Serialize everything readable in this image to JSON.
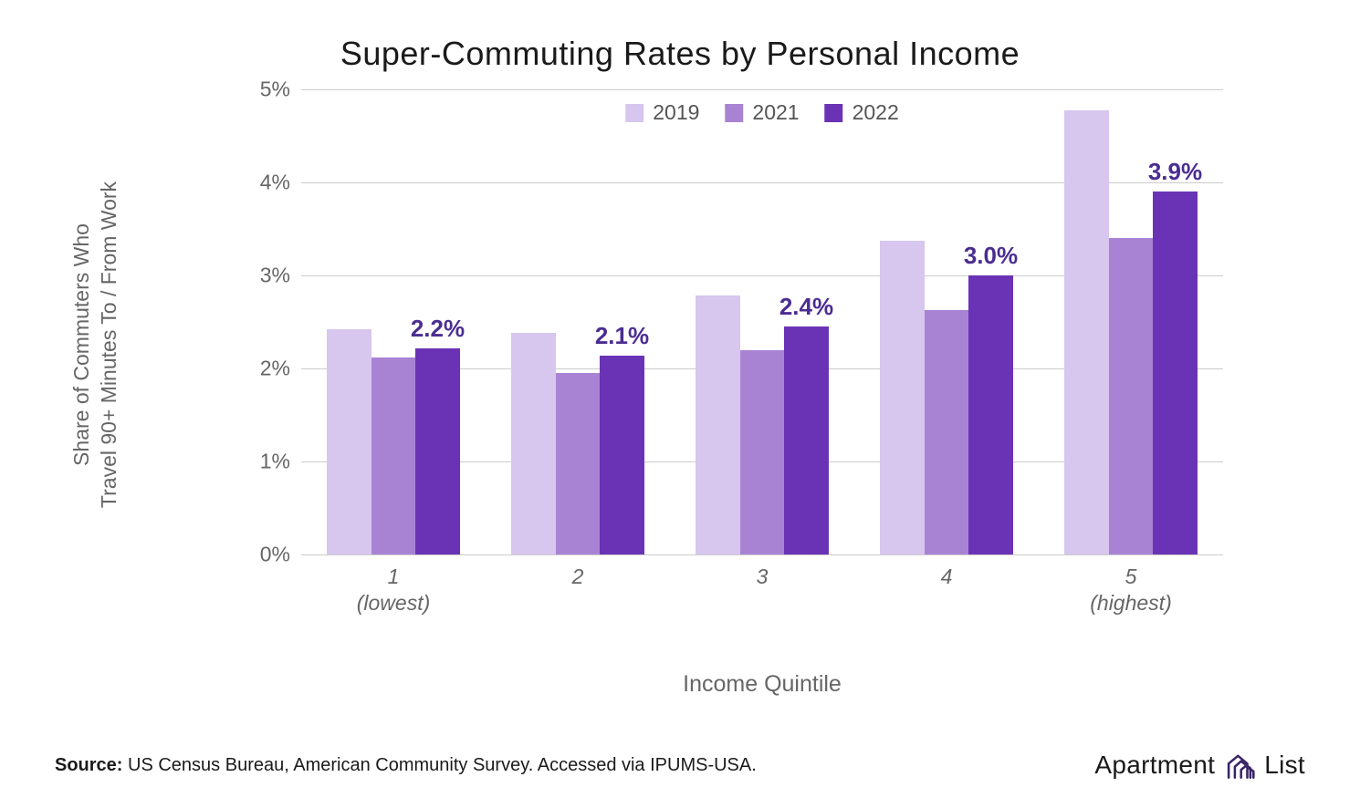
{
  "title": "Super-Commuting Rates by Personal Income",
  "y_axis_label": "Share of Commuters Who\nTravel 90+ Minutes To / From Work",
  "x_axis_title": "Income Quintile",
  "source_prefix": "Source:",
  "source_text": " US Census Bureau, American Community Survey. Accessed via IPUMS-USA.",
  "logo_text": "Apartment",
  "logo_text2": "List",
  "chart": {
    "type": "bar",
    "ylim": [
      0,
      5
    ],
    "ytick_step": 1,
    "ytick_suffix": "%",
    "background_color": "#ffffff",
    "grid_color": "#cccccc",
    "axis_text_color": "#666666",
    "value_label_color": "#4b2d91",
    "value_label_fontsize": 26,
    "bar_group_inner_padding": 0.14,
    "series": [
      {
        "label": "2019",
        "color": "#d7c6ee"
      },
      {
        "label": "2021",
        "color": "#a883d4"
      },
      {
        "label": "2022",
        "color": "#6a33b5"
      }
    ],
    "categories": [
      {
        "label": "1\n(lowest)",
        "values": [
          2.42,
          2.12,
          2.22
        ],
        "show_value_index": 2,
        "value_label": "2.2%"
      },
      {
        "label": "2",
        "values": [
          2.38,
          1.95,
          2.14
        ],
        "show_value_index": 2,
        "value_label": "2.1%"
      },
      {
        "label": "3",
        "values": [
          2.78,
          2.2,
          2.45
        ],
        "show_value_index": 2,
        "value_label": "2.4%"
      },
      {
        "label": "4",
        "values": [
          3.37,
          2.63,
          3.0
        ],
        "show_value_index": 2,
        "value_label": "3.0%"
      },
      {
        "label": "5\n(highest)",
        "values": [
          4.77,
          3.4,
          3.9
        ],
        "show_value_index": 2,
        "value_label": "3.9%"
      }
    ]
  }
}
